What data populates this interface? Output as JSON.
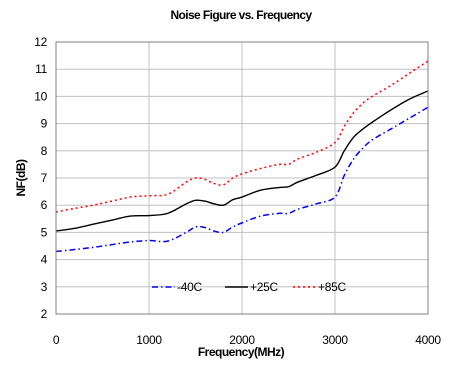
{
  "chart_data": {
    "type": "line",
    "title": "Noise Figure vs. Frequency",
    "xlabel": "Frequency(MHz)",
    "ylabel": "NF(dB)",
    "xlim": [
      0,
      4000
    ],
    "ylim": [
      2,
      12
    ],
    "xticks": [
      0,
      1000,
      2000,
      3000,
      4000
    ],
    "yticks": [
      2,
      3,
      4,
      5,
      6,
      7,
      8,
      9,
      10,
      11,
      12
    ],
    "grid": true,
    "legend_position": "bottom-center",
    "series": [
      {
        "name": "-40C",
        "color": "#0000ff",
        "dash": "dash-dot",
        "x": [
          0,
          200,
          400,
          600,
          800,
          1000,
          1200,
          1400,
          1500,
          1600,
          1700,
          1800,
          1900,
          2000,
          2200,
          2400,
          2500,
          2600,
          2800,
          3000,
          3100,
          3200,
          3300,
          3400,
          3600,
          3800,
          4000
        ],
        "y": [
          4.3,
          4.37,
          4.45,
          4.55,
          4.65,
          4.7,
          4.68,
          5.0,
          5.2,
          5.18,
          5.05,
          5.0,
          5.2,
          5.35,
          5.6,
          5.7,
          5.7,
          5.85,
          6.05,
          6.3,
          7.1,
          7.7,
          8.1,
          8.4,
          8.8,
          9.2,
          9.6
        ]
      },
      {
        "name": "+25C",
        "color": "#000000",
        "dash": "solid",
        "x": [
          0,
          200,
          400,
          600,
          800,
          1000,
          1200,
          1400,
          1500,
          1600,
          1700,
          1800,
          1900,
          2000,
          2200,
          2400,
          2500,
          2600,
          2800,
          3000,
          3100,
          3200,
          3300,
          3400,
          3600,
          3800,
          4000
        ],
        "y": [
          5.05,
          5.15,
          5.3,
          5.45,
          5.6,
          5.62,
          5.7,
          6.05,
          6.18,
          6.15,
          6.05,
          6.0,
          6.2,
          6.3,
          6.55,
          6.65,
          6.68,
          6.85,
          7.1,
          7.4,
          8.0,
          8.5,
          8.8,
          9.05,
          9.5,
          9.9,
          10.2
        ]
      },
      {
        "name": "+85C",
        "color": "#ff0000",
        "dash": "dotted",
        "x": [
          0,
          200,
          400,
          600,
          800,
          1000,
          1200,
          1400,
          1500,
          1600,
          1700,
          1800,
          1900,
          2000,
          2200,
          2400,
          2500,
          2600,
          2800,
          3000,
          3100,
          3200,
          3300,
          3400,
          3600,
          3800,
          4000
        ],
        "y": [
          5.75,
          5.88,
          6.0,
          6.15,
          6.3,
          6.35,
          6.4,
          6.85,
          7.0,
          6.95,
          6.8,
          6.75,
          7.0,
          7.15,
          7.35,
          7.5,
          7.5,
          7.7,
          7.95,
          8.3,
          8.9,
          9.4,
          9.75,
          10.0,
          10.4,
          10.85,
          11.3
        ]
      }
    ]
  }
}
